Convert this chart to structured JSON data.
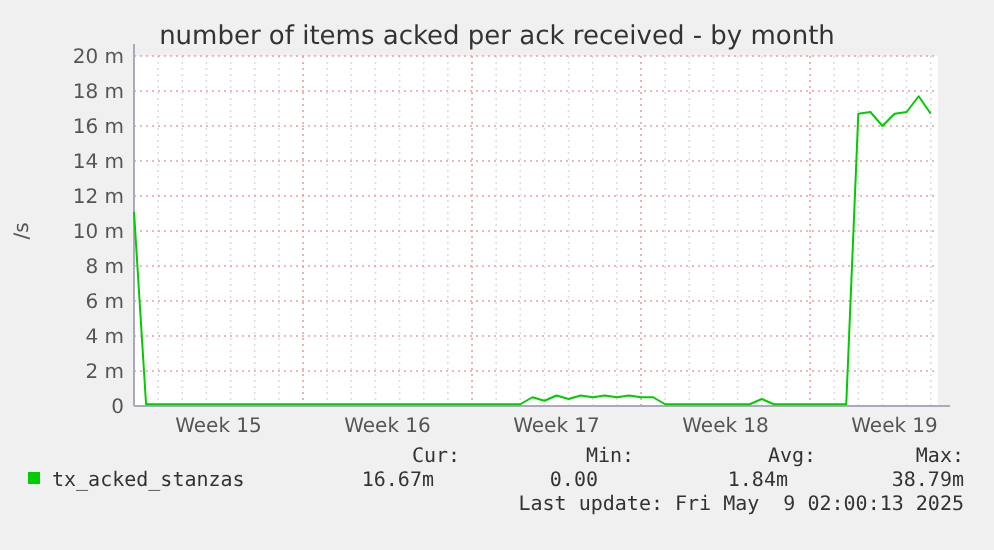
{
  "chart_data": {
    "type": "line",
    "title": "number of items acked per ack received - by month",
    "ylabel": "/s",
    "categories": [
      null,
      null,
      null,
      null,
      null,
      null,
      null,
      "Week 15",
      null,
      null,
      null,
      null,
      null,
      null,
      null,
      null,
      null,
      null,
      null,
      null,
      null,
      "Week 16",
      null,
      null,
      null,
      null,
      null,
      null,
      null,
      null,
      null,
      null,
      null,
      null,
      null,
      "Week 17",
      null,
      null,
      null,
      null,
      null,
      null,
      null,
      null,
      null,
      null,
      null,
      null,
      null,
      "Week 18",
      null,
      null,
      null,
      null,
      null,
      null,
      null,
      null,
      null,
      null,
      null,
      null,
      null,
      "Week 19",
      null,
      null,
      null
    ],
    "series": [
      {
        "name": "tx_acked_stanzas",
        "color": "#00cc00",
        "values": [
          11.1,
          0.1,
          0.1,
          0.1,
          0.1,
          0.1,
          0.1,
          0.1,
          0.1,
          0.1,
          0.1,
          0.1,
          0.1,
          0.1,
          0.1,
          0.1,
          0.1,
          0.1,
          0.1,
          0.1,
          0.1,
          0.1,
          0.1,
          0.1,
          0.1,
          0.1,
          0.1,
          0.1,
          0.1,
          0.1,
          0.1,
          0.1,
          0.1,
          0.5,
          0.3,
          0.6,
          0.4,
          0.6,
          0.5,
          0.6,
          0.5,
          0.6,
          0.5,
          0.5,
          0.1,
          0.1,
          0.1,
          0.1,
          0.1,
          0.1,
          0.1,
          0.1,
          0.4,
          0.1,
          0.1,
          0.1,
          0.1,
          0.1,
          0.1,
          0.1,
          16.7,
          16.8,
          16.0,
          16.7,
          16.8,
          17.7,
          16.7
        ]
      }
    ],
    "ylim": [
      0,
      20
    ],
    "yticks": [
      0,
      {
        "value": 2,
        "label": "2 m"
      },
      {
        "value": 4,
        "label": "4 m"
      },
      {
        "value": 6,
        "label": "6 m"
      },
      {
        "value": 8,
        "label": "8 m"
      },
      {
        "value": 10,
        "label": "10 m"
      },
      {
        "value": 12,
        "label": "12 m"
      },
      {
        "value": 14,
        "label": "14 m"
      },
      {
        "value": 16,
        "label": "16 m"
      },
      {
        "value": 18,
        "label": "18 m"
      },
      {
        "value": 20,
        "label": "20 m"
      }
    ],
    "grid": true,
    "legend": "bottom",
    "annotations": [
      "Cur:",
      "Min:",
      "Avg:",
      "Max:",
      "16.67m",
      "0.00",
      "1.84m",
      "38.79m",
      "Last update: Fri May  9 02:00:13 2025"
    ]
  }
}
